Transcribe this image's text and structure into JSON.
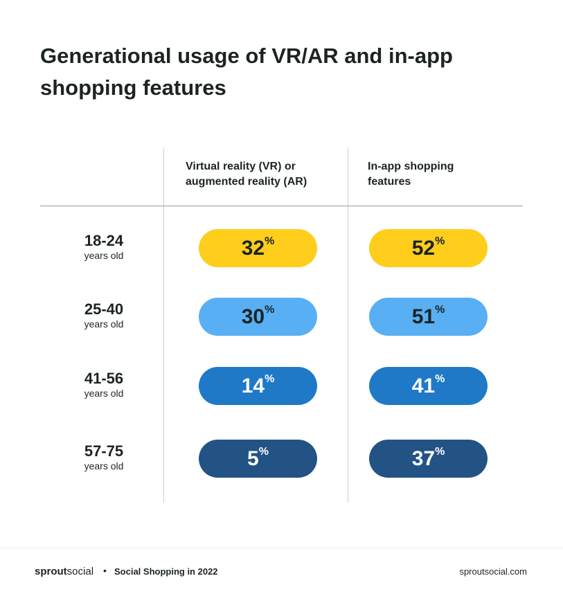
{
  "chart_data": {
    "type": "table",
    "title": "Generational usage of VR/AR and in-app shopping features",
    "columns": [
      "Virtual reality (VR) or augmented reality (AR)",
      "In-app shopping features"
    ],
    "rows": [
      {
        "age": "18-24",
        "sub": "years old",
        "values": [
          32,
          52
        ],
        "color": "#FFCD1C",
        "text_color": "#1c2323"
      },
      {
        "age": "25-40",
        "sub": "years old",
        "values": [
          30,
          51
        ],
        "color": "#59AFF3",
        "text_color": "#1c2323"
      },
      {
        "age": "41-56",
        "sub": "years old",
        "values": [
          14,
          41
        ],
        "color": "#2079C7",
        "text_color": "#ffffff"
      },
      {
        "age": "57-75",
        "sub": "years old",
        "values": [
          5,
          37
        ],
        "color": "#235284",
        "text_color": "#ffffff"
      }
    ],
    "unit": "%"
  },
  "footer": {
    "logo_bold": "sprout",
    "logo_light": "social",
    "separator": "•",
    "subtitle": "Social Shopping in 2022",
    "url": "sproutsocial.com"
  }
}
